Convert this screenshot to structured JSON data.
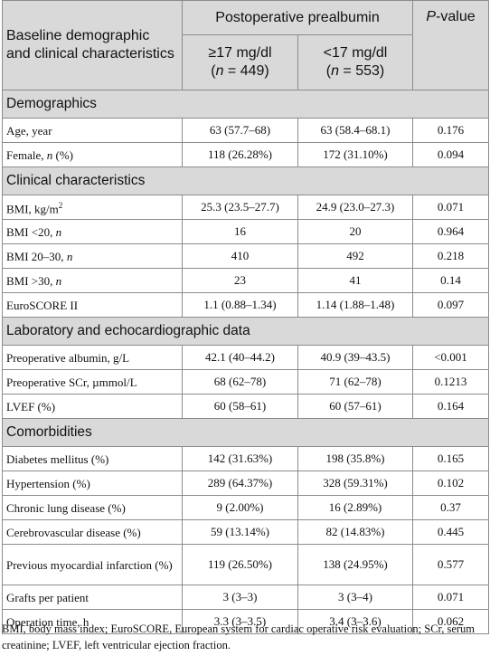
{
  "header": {
    "col1": "Baseline demographic and clinical characteristics",
    "group": "Postoperative prealbumin",
    "pvalue_prefix": "P",
    "pvalue_suffix": "-value",
    "sub1_line1": "≥17 mg/dl",
    "sub1_n_label": "n",
    "sub1_n": " = 449)",
    "sub2_line1": "<17 mg/dl",
    "sub2_n_label": "n",
    "sub2_n": " = 553)"
  },
  "sections": [
    {
      "title": "Demographics",
      "rows": [
        {
          "label": "Age, year",
          "hi": "63 (57.7–68)",
          "lo": "63 (58.4–68.1)",
          "p": "0.176"
        },
        {
          "label": "Female, ",
          "label_italic": "n",
          "label_after": " (%)",
          "hi": "118 (26.28%)",
          "lo": "172 (31.10%)",
          "p": "0.094"
        }
      ]
    },
    {
      "title": "Clinical characteristics",
      "rows": [
        {
          "label": "BMI, kg/m",
          "label_sup": "2",
          "hi": "25.3 (23.5–27.7)",
          "lo": "24.9 (23.0–27.3)",
          "p": "0.071"
        },
        {
          "label": "BMI <20, ",
          "label_italic": "n",
          "hi": "16",
          "lo": "20",
          "p": "0.964"
        },
        {
          "label": "BMI 20–30, ",
          "label_italic": "n",
          "hi": "410",
          "lo": "492",
          "p": "0.218"
        },
        {
          "label": "BMI >30, ",
          "label_italic": "n",
          "hi": "23",
          "lo": "41",
          "p": "0.14"
        },
        {
          "label": "EuroSCORE II",
          "hi": "1.1 (0.88–1.34)",
          "lo": "1.14 (1.88–1.48)",
          "p": "0.097"
        }
      ]
    },
    {
      "title": "Laboratory and echocardiographic data",
      "rows": [
        {
          "label": "Preoperative albumin, g/L",
          "hi": "42.1 (40–44.2)",
          "lo": "40.9 (39–43.5)",
          "p": "<0.001"
        },
        {
          "label": "Preoperative SCr, µmmol/L",
          "hi": "68 (62–78)",
          "lo": "71 (62–78)",
          "p": "0.1213"
        },
        {
          "label": "LVEF (%)",
          "hi": "60 (58–61)",
          "lo": "60 (57–61)",
          "p": "0.164"
        }
      ]
    },
    {
      "title": "Comorbidities",
      "rows": [
        {
          "label": "Diabetes mellitus (%)",
          "hi": "142 (31.63%)",
          "lo": "198 (35.8%)",
          "p": "0.165"
        },
        {
          "label": "Hypertension (%)",
          "hi": "289 (64.37%)",
          "lo": "328 (59.31%)",
          "p": "0.102"
        },
        {
          "label": "Chronic lung disease (%)",
          "hi": "9 (2.00%)",
          "lo": "16 (2.89%)",
          "p": "0.37"
        },
        {
          "label": "Cerebrovascular disease (%)",
          "hi": "59 (13.14%)",
          "lo": "82 (14.83%)",
          "p": "0.445"
        },
        {
          "label": "Previous myocardial infarction (%)",
          "hi": "119 (26.50%)",
          "lo": "138 (24.95%)",
          "p": "0.577",
          "tall": true
        },
        {
          "label": "Grafts per patient",
          "hi": "3 (3–3)",
          "lo": "3 (3–4)",
          "p": "0.071"
        },
        {
          "label": "Operation time, h",
          "hi": "3.3 (3–3.5)",
          "lo": "3.4 (3–3.6)",
          "p": "0.062"
        }
      ]
    }
  ],
  "footnote": "BMI, body mass index; EuroSCORE, European system for cardiac operative risk evaluation; SCr, serum creatinine; LVEF, left ventricular ejection fraction."
}
